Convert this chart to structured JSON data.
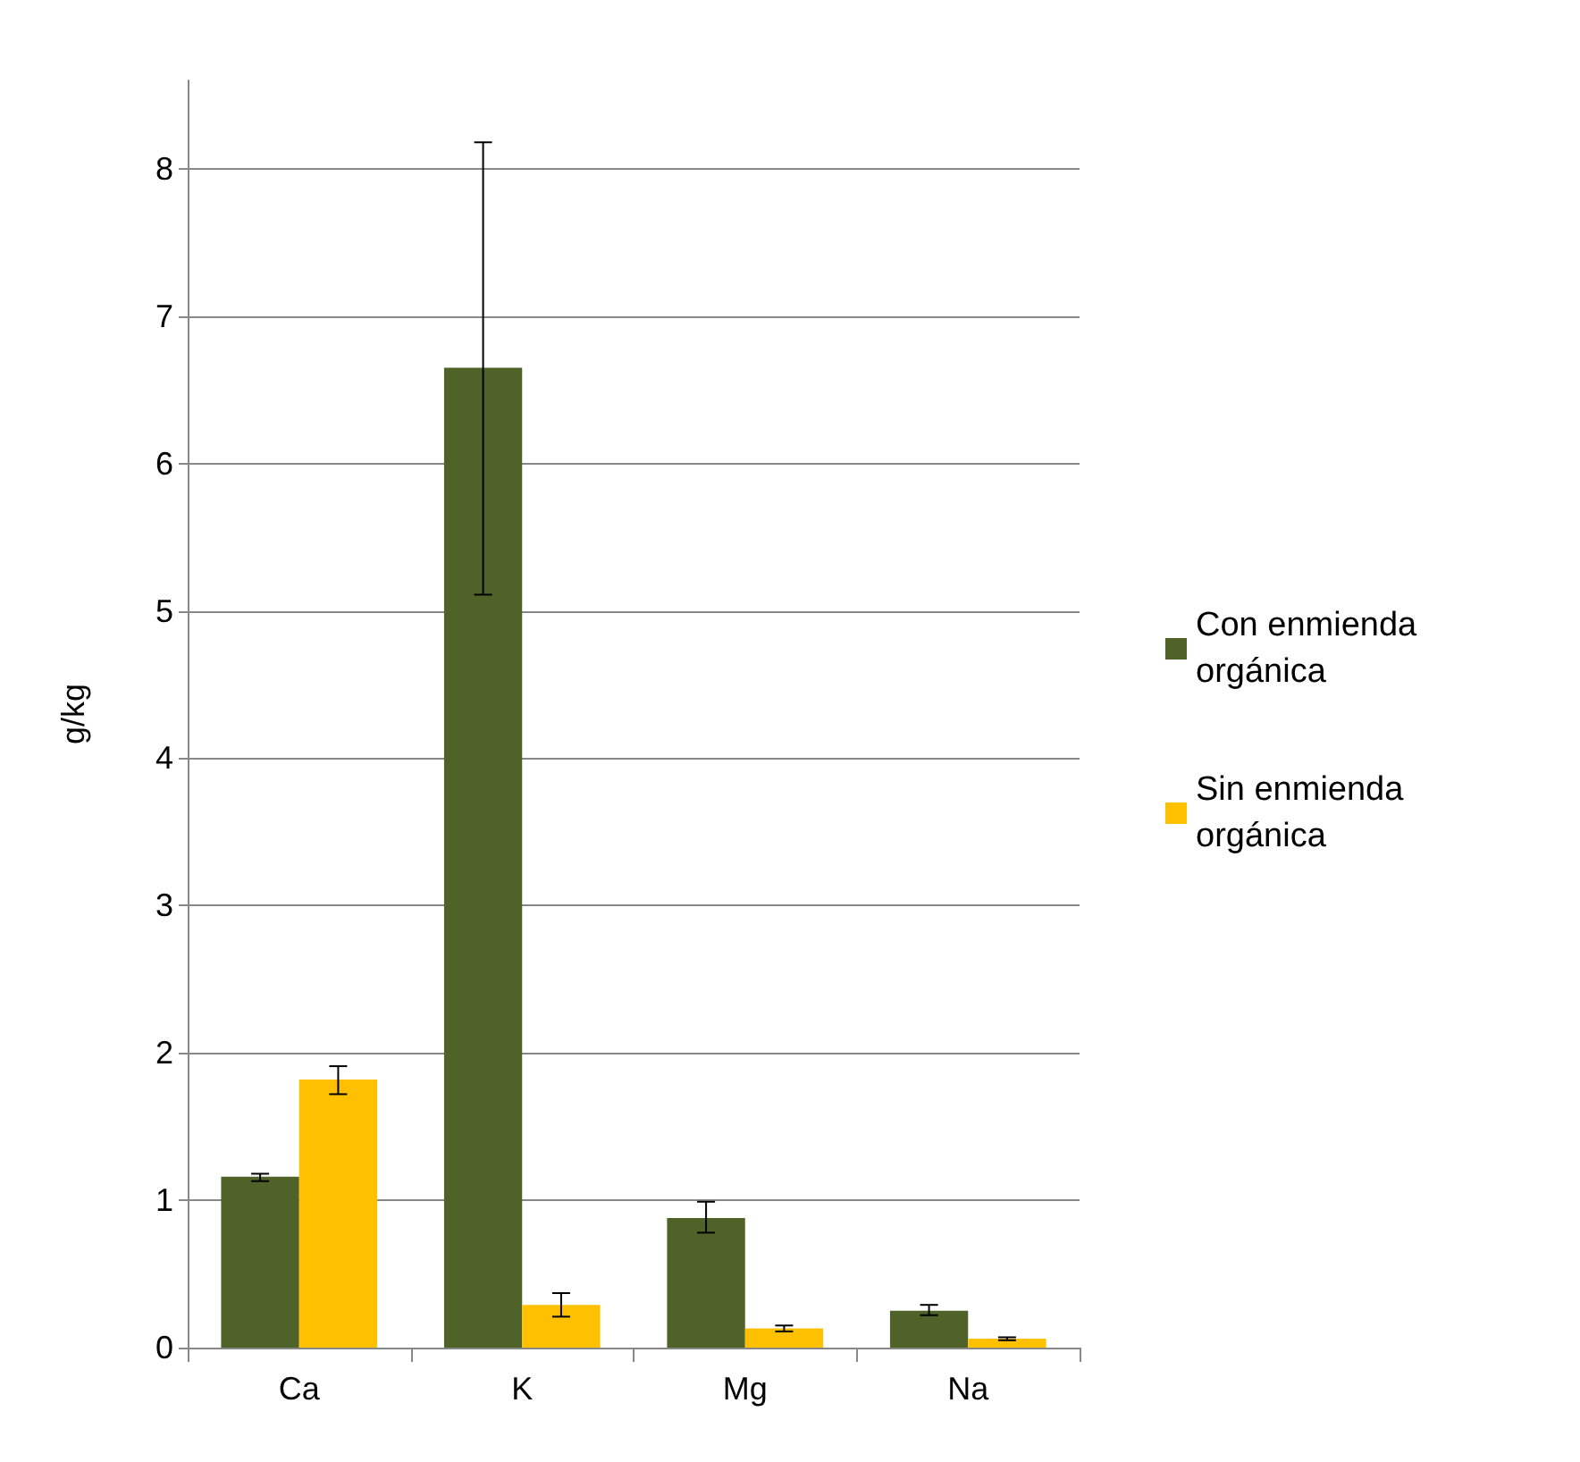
{
  "chart_data": {
    "type": "bar",
    "ylabel": "g/kg",
    "categories": [
      "Ca",
      "K",
      "Mg",
      "Na"
    ],
    "series": [
      {
        "name": "Con enmienda orgánica",
        "color": "#4f6228",
        "values": [
          1.16,
          6.65,
          0.88,
          0.25
        ],
        "errors": [
          [
            1.13,
            1.18
          ],
          [
            5.11,
            8.18
          ],
          [
            0.78,
            0.99
          ],
          [
            0.22,
            0.29
          ]
        ]
      },
      {
        "name": "Sin enmienda orgánica",
        "color": "#ffc000",
        "values": [
          1.82,
          0.29,
          0.13,
          0.06
        ],
        "errors": [
          [
            1.72,
            1.91
          ],
          [
            0.21,
            0.37
          ],
          [
            0.11,
            0.15
          ],
          [
            0.05,
            0.07
          ]
        ]
      }
    ],
    "ylim": [
      0,
      8.6
    ],
    "yticks": [
      0,
      1,
      2,
      3,
      4,
      5,
      6,
      7,
      8
    ],
    "grid": "y",
    "legend": "right"
  }
}
